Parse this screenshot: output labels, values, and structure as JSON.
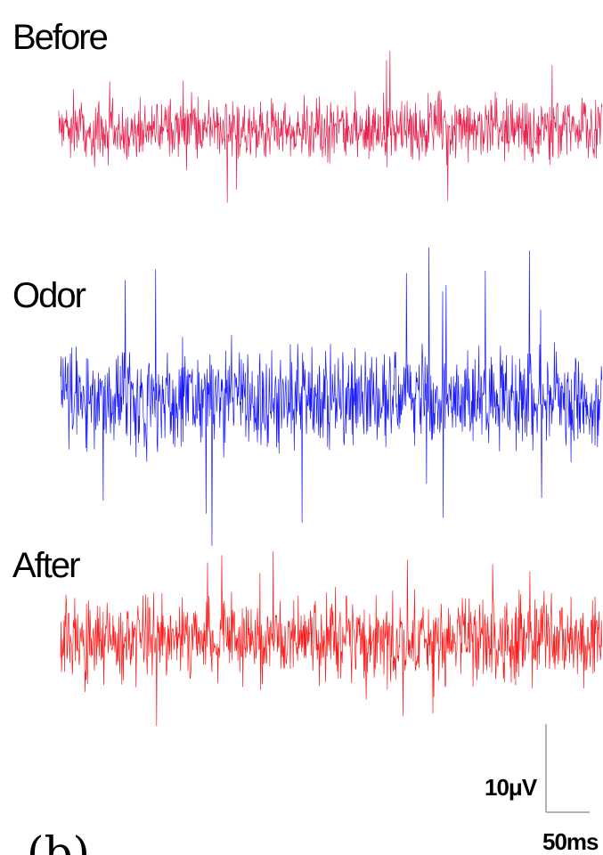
{
  "chart_data": {
    "type": "line",
    "series": [
      {
        "name": "Before",
        "color": "#e8214d",
        "noise_amplitude_uV": 3,
        "max_spike_uV": 9
      },
      {
        "name": "Odor",
        "color": "#1a1aff",
        "noise_amplitude_uV": 5,
        "max_spike_uV": 18
      },
      {
        "name": "After",
        "color": "#ff1a1a",
        "noise_amplitude_uV": 4,
        "max_spike_uV": 10
      }
    ],
    "scale_bar": {
      "voltage_label": "10μV",
      "voltage_value": 10,
      "time_label": "50ms",
      "time_value": 50
    },
    "grid": false,
    "axes_visible": false
  },
  "panel_label": "(b)"
}
